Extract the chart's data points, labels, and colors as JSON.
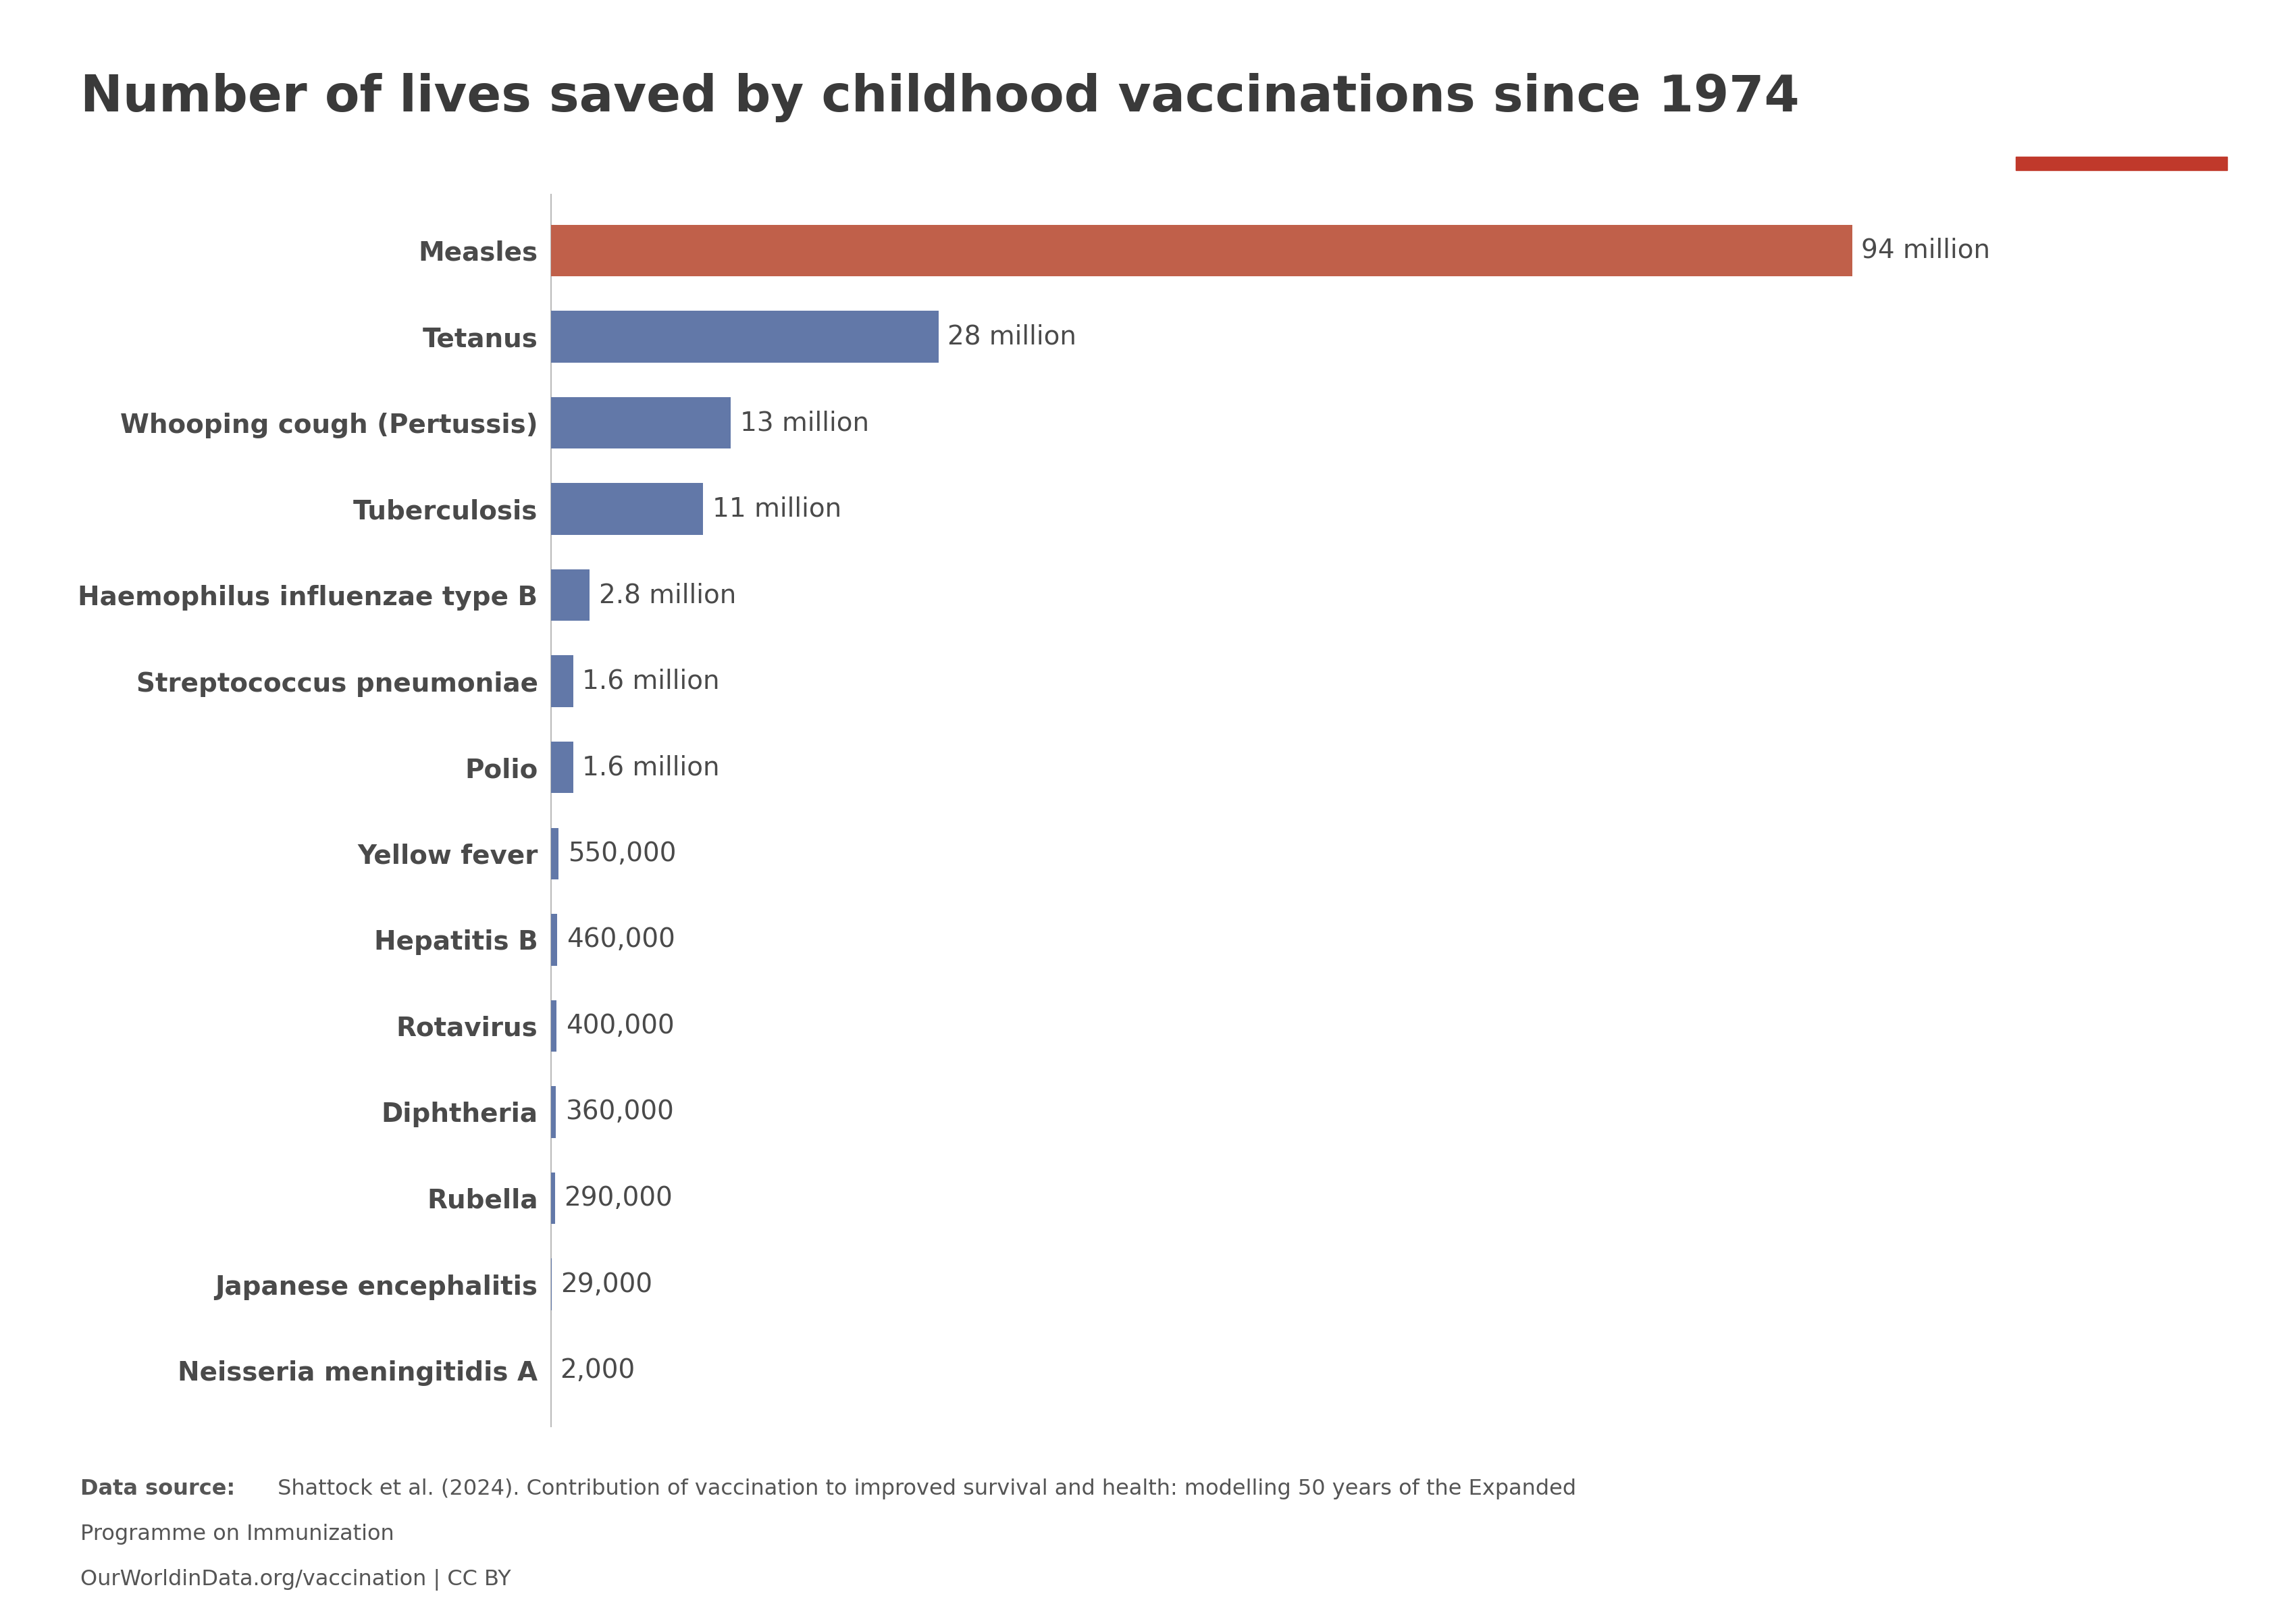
{
  "title": "Number of lives saved by childhood vaccinations since 1974",
  "categories": [
    "Measles",
    "Tetanus",
    "Whooping cough (Pertussis)",
    "Tuberculosis",
    "Haemophilus influenzae type B",
    "Streptococcus pneumoniae",
    "Polio",
    "Yellow fever",
    "Hepatitis B",
    "Rotavirus",
    "Diphtheria",
    "Rubella",
    "Japanese encephalitis",
    "Neisseria meningitidis A"
  ],
  "values": [
    94000000,
    28000000,
    13000000,
    11000000,
    2800000,
    1600000,
    1600000,
    550000,
    460000,
    400000,
    360000,
    290000,
    29000,
    2000
  ],
  "labels": [
    "94 million",
    "28 million",
    "13 million",
    "11 million",
    "2.8 million",
    "1.6 million",
    "1.6 million",
    "550,000",
    "460,000",
    "400,000",
    "360,000",
    "290,000",
    "29,000",
    "2,000"
  ],
  "bar_color_measles": "#c0604a",
  "bar_color_others": "#6278a8",
  "background_color": "#ffffff",
  "title_color": "#3a3a3a",
  "label_color": "#4a4a4a",
  "source_bold": "Data source:",
  "source_text": " Shattock et al. (2024). Contribution of vaccination to improved survival and health: modelling 50 years of the Expanded\nProgramme on Immunization",
  "source_url": "OurWorldinData.org/vaccination | CC BY",
  "owid_box_color": "#0d2b5e",
  "owid_red": "#c0392b"
}
